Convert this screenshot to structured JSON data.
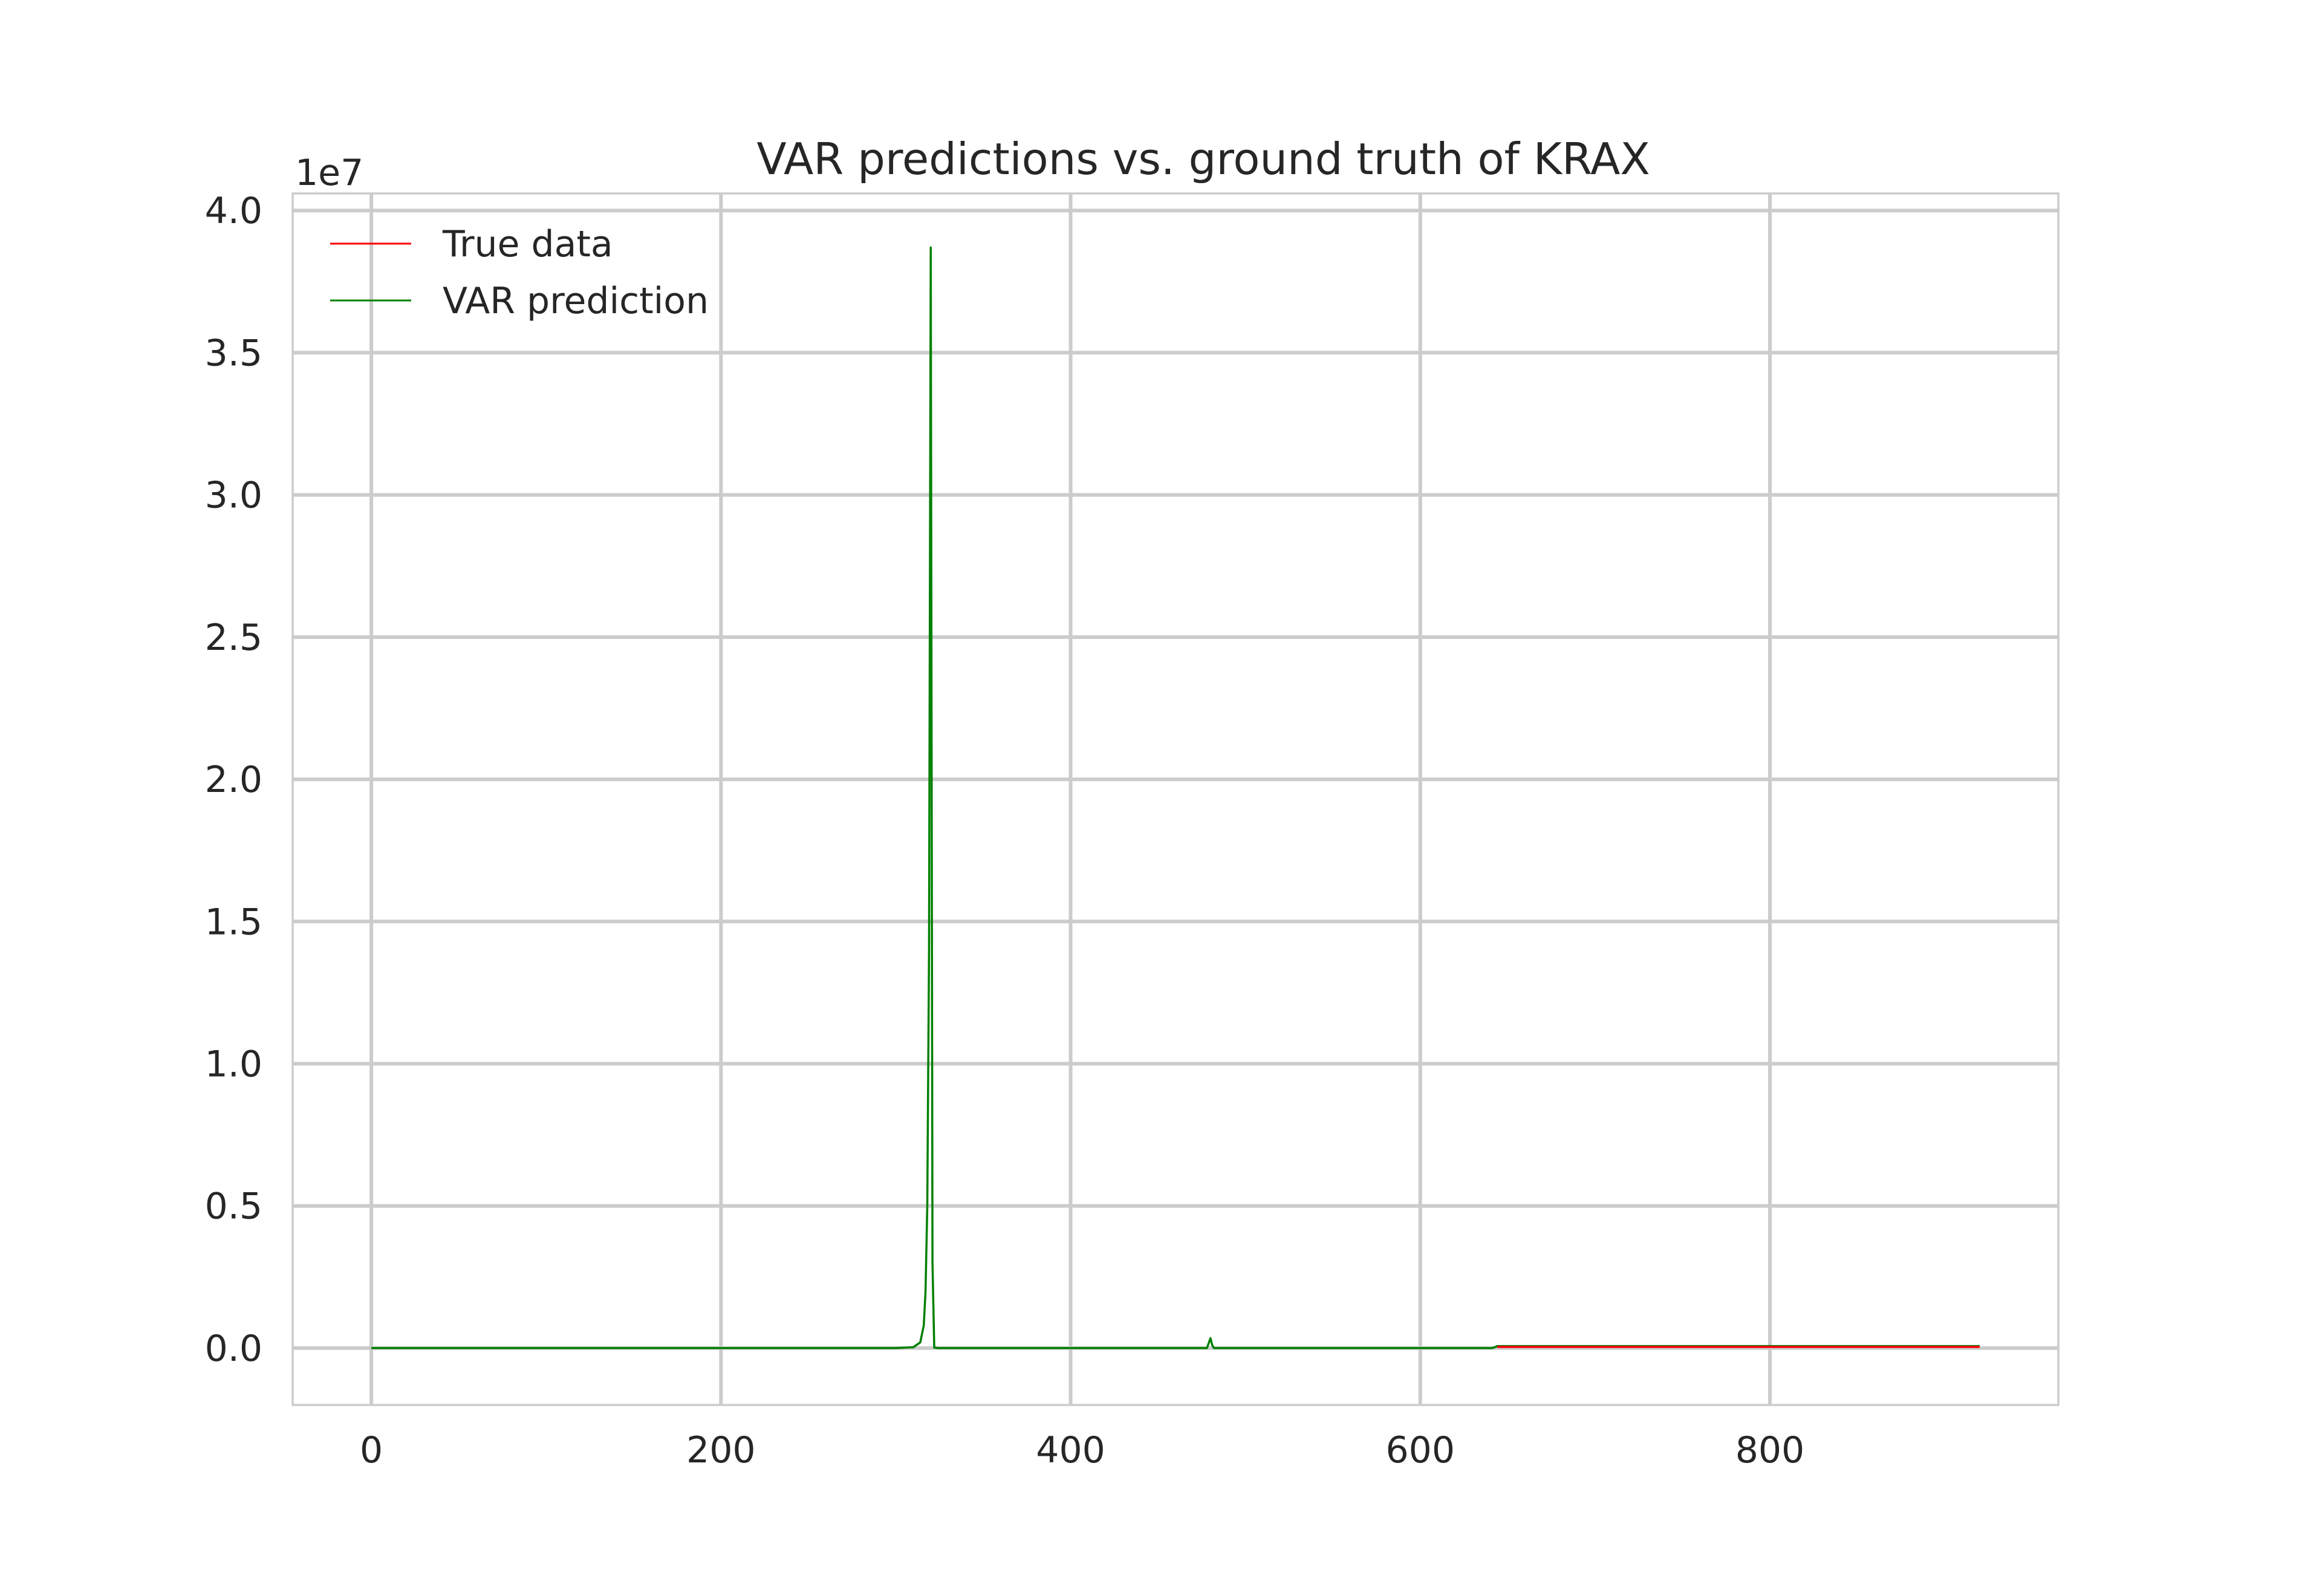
{
  "chart_data": {
    "type": "line",
    "title": "VAR predictions vs. ground truth of KRAX",
    "xlabel": "",
    "ylabel": "",
    "y_offset_label": "1e7",
    "xlim": [
      -45,
      965
    ],
    "ylim": [
      -0.2,
      4.06
    ],
    "x_ticks": [
      0,
      200,
      400,
      600,
      800
    ],
    "x_tick_labels": [
      "0",
      "200",
      "400",
      "600",
      "800"
    ],
    "y_ticks": [
      0.0,
      0.5,
      1.0,
      1.5,
      2.0,
      2.5,
      3.0,
      3.5,
      4.0
    ],
    "y_tick_labels": [
      "0.0",
      "0.5",
      "1.0",
      "1.5",
      "2.0",
      "2.5",
      "3.0",
      "3.5",
      "4.0"
    ],
    "grid": true,
    "legend_position": "top-left",
    "series": [
      {
        "name": "True data",
        "color": "#ff0000",
        "x": [
          644,
          920
        ],
        "y": [
          0.004,
          0.004
        ]
      },
      {
        "name": "VAR prediction",
        "color": "#008000",
        "x": [
          0,
          60,
          120,
          180,
          240,
          280,
          300,
          310,
          314,
          316,
          317,
          318,
          319,
          320,
          321,
          322,
          324,
          330,
          400,
          478,
          480,
          481,
          482,
          484,
          560,
          630,
          641,
          642,
          643,
          644,
          700,
          800,
          900,
          920
        ],
        "y": [
          0.0,
          0.0,
          0.0,
          0.0,
          0.0,
          0.0,
          0.0,
          0.003,
          0.02,
          0.08,
          0.2,
          0.5,
          1.4,
          3.87,
          0.3,
          0.002,
          0.0,
          0.0,
          0.0,
          0.0,
          0.035,
          0.01,
          0.0,
          0.0,
          0.0,
          0.0,
          0.0,
          0.002,
          0.004,
          0.007,
          0.007,
          0.007,
          0.007,
          0.007
        ]
      }
    ]
  }
}
